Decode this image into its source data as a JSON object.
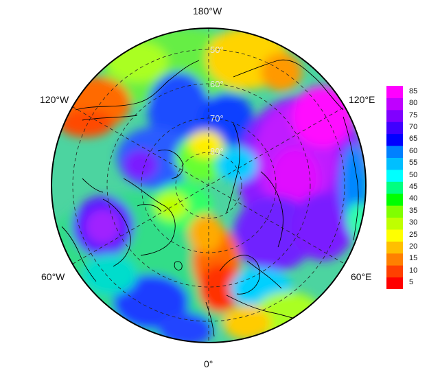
{
  "labels": {
    "top": "180°W",
    "bottom": "0°",
    "upper_left": "120°W",
    "upper_right": "120°E",
    "lower_left": "60°W",
    "lower_right": "60°E"
  },
  "latitude_labels": [
    "50°",
    "60°",
    "70°",
    "80°"
  ],
  "colorbar": {
    "ticks": [
      "85",
      "80",
      "75",
      "70",
      "65",
      "60",
      "55",
      "50",
      "45",
      "40",
      "35",
      "30",
      "25",
      "20",
      "15",
      "10",
      "5"
    ],
    "colors_low_to_high": [
      "#ff0000",
      "#ff4000",
      "#ff8000",
      "#ffbf00",
      "#ffff00",
      "#bfff00",
      "#80ff00",
      "#00ff00",
      "#00ff80",
      "#00ffff",
      "#00bfff",
      "#0080ff",
      "#0000ff",
      "#4000ff",
      "#8000ff",
      "#bf00ff",
      "#ff00ff"
    ]
  }
}
